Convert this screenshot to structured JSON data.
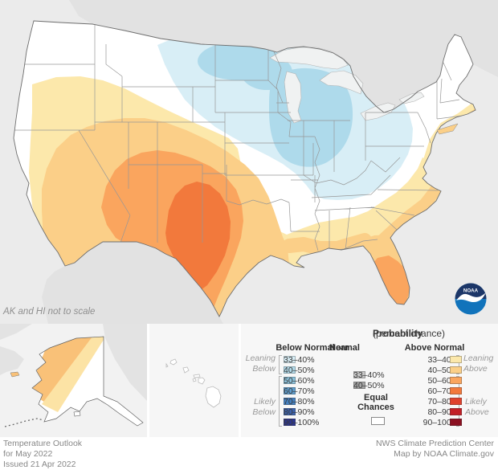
{
  "map": {
    "note": "AK and HI not to scale",
    "colors": {
      "ocean": "#ebebeb",
      "non_us_land": "#e2e2e2",
      "us_land": "#ffffff",
      "lakes": "#f0f2f2"
    },
    "outlook_regions": [
      {
        "region": "Southwest, southern Plains and Gulf Coast (core over west Texas / eastern New Mexico)",
        "category": "Above Normal",
        "max_probability": "60–70%"
      },
      {
        "region": "Southeast and mid-Atlantic coastal plain; Florida (south Florida 50–60%)",
        "category": "Above Normal",
        "max_probability": "50–60%"
      },
      {
        "region": "Northeast coastal strip (Long Island to Cape Cod, New Jersey, Delmarva)",
        "category": "Above Normal",
        "max_probability": "33–50%"
      },
      {
        "region": "Northern Plains, upper Midwest, Great Lakes and Ohio Valley",
        "category": "Below Normal",
        "max_probability": "40–50%"
      },
      {
        "region": "Pacific Northwest, central Plains, interior Southeast, New England",
        "category": "Equal Chances",
        "max_probability": "—"
      },
      {
        "region": "Northwest Alaska",
        "category": "Above Normal",
        "max_probability": "40–50%"
      }
    ]
  },
  "legend": {
    "title_bold": "Probability",
    "title_rest": " (percent chance)",
    "below": {
      "header": "Below Normal",
      "leaning_label": [
        "Leaning",
        "Below"
      ],
      "likely_label": [
        "Likely",
        "Below"
      ],
      "rows": [
        {
          "label": "33–40%",
          "color": "#d8eef6"
        },
        {
          "label": "40–50%",
          "color": "#b3dcec"
        },
        {
          "label": "50–60%",
          "color": "#8cc3dd"
        },
        {
          "label": "60–70%",
          "color": "#5f9fd0"
        },
        {
          "label": "70–80%",
          "color": "#4480c0"
        },
        {
          "label": "80–90%",
          "color": "#3c63af"
        },
        {
          "label": "90–100%",
          "color": "#2b3590"
        }
      ]
    },
    "near": {
      "header_lines": [
        "Near",
        "Normal"
      ],
      "rows": [
        {
          "label": "33–40%",
          "color": "#c8c8c8"
        },
        {
          "label": "40–50%",
          "color": "#a7a7a7"
        }
      ],
      "equal_lines": [
        "Equal",
        "Chances"
      ],
      "equal_color": "#ffffff"
    },
    "above": {
      "header": "Above Normal",
      "leaning_label": [
        "Leaning",
        "Above"
      ],
      "likely_label": [
        "Likely",
        "Above"
      ],
      "rows": [
        {
          "label": "33–40%",
          "color": "#fce8ab"
        },
        {
          "label": "40–50%",
          "color": "#fbcf88"
        },
        {
          "label": "50–60%",
          "color": "#faa55e"
        },
        {
          "label": "60–70%",
          "color": "#f2793c"
        },
        {
          "label": "70–80%",
          "color": "#df422e"
        },
        {
          "label": "80–90%",
          "color": "#c22027"
        },
        {
          "label": "90–100%",
          "color": "#8c1021"
        }
      ]
    }
  },
  "logo": {
    "text": "NOAA"
  },
  "footer": {
    "left_lines": [
      "Temperature Outlook",
      "for May 2022",
      "Issued 21 Apr 2022"
    ],
    "right_lines": [
      "NWS Climate Prediction Center",
      "Map by NOAA Climate.gov"
    ]
  }
}
